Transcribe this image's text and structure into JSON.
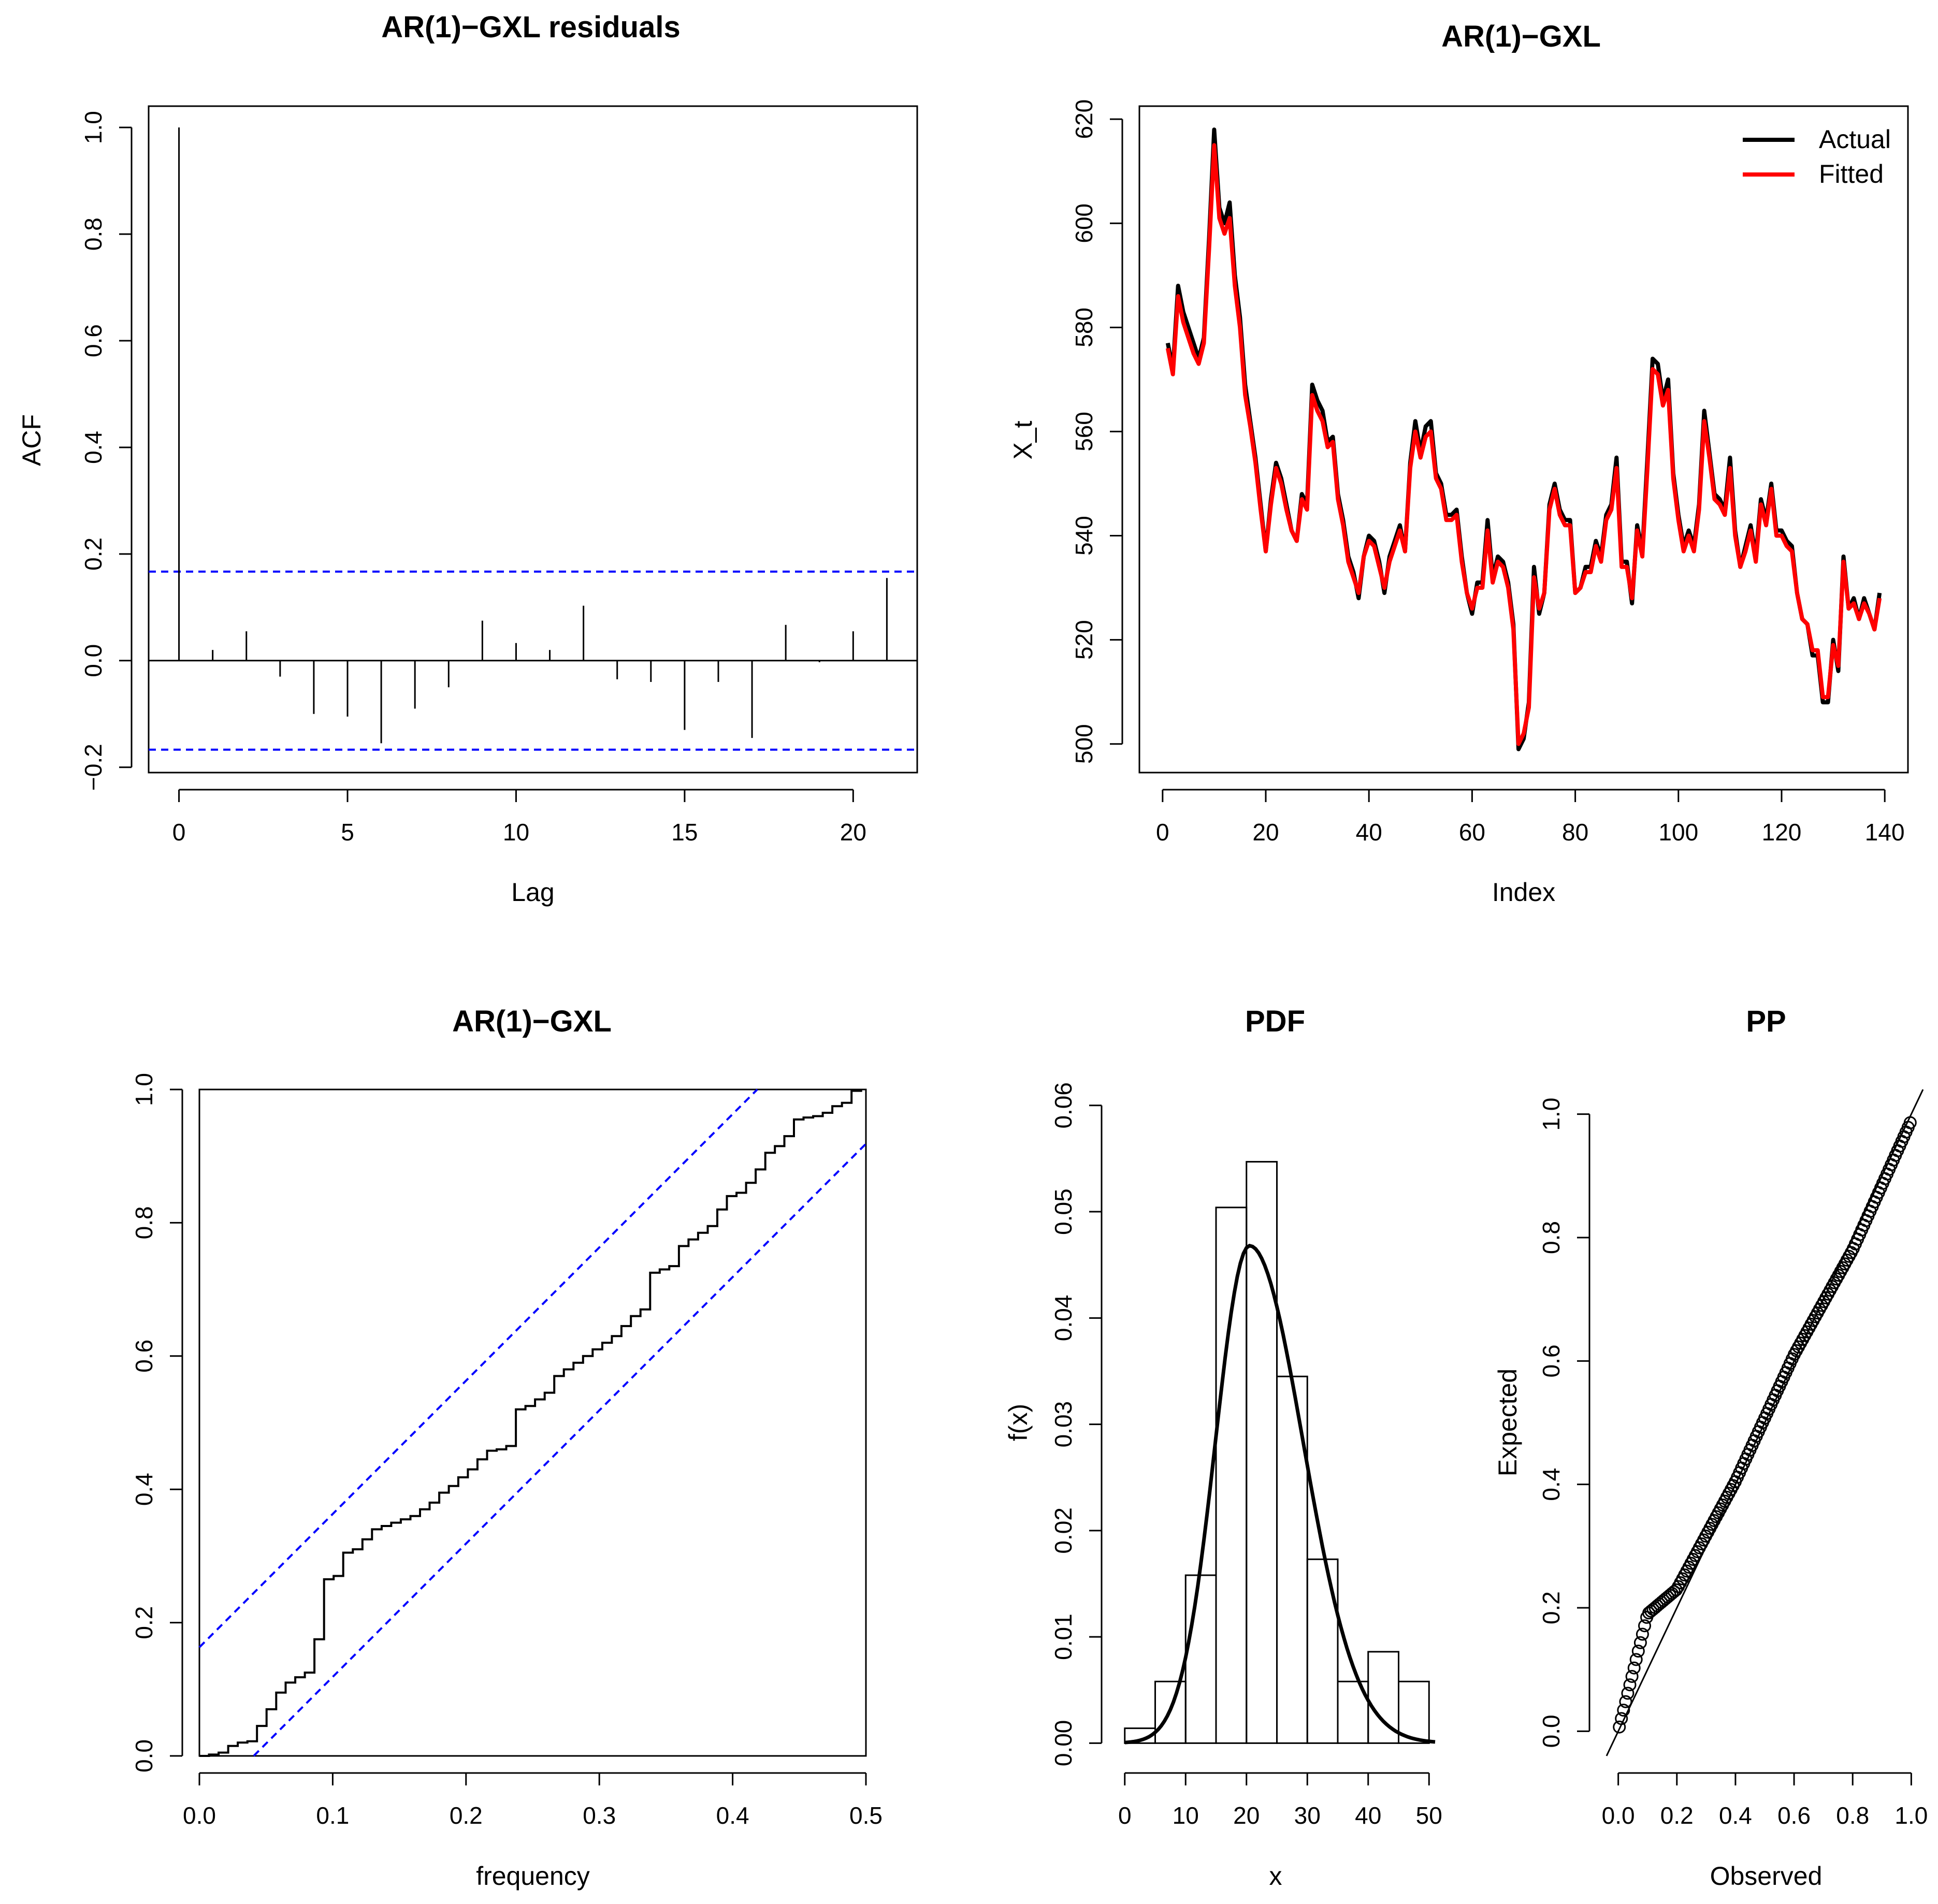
{
  "chart_data": [
    {
      "id": "acf",
      "type": "bar",
      "title": "AR(1)−GXL residuals",
      "xlabel": "Lag",
      "ylabel": "ACF",
      "xlim": [
        -0.9,
        21.9
      ],
      "ylim": [
        -0.21,
        1.04
      ],
      "xticks": [
        0,
        5,
        10,
        15,
        20
      ],
      "yticks": [
        -0.2,
        0.0,
        0.2,
        0.4,
        0.6,
        0.8,
        1.0
      ],
      "ytick_labels": [
        "−0.2",
        "0.0",
        "0.2",
        "0.4",
        "0.6",
        "0.8",
        "1.0"
      ],
      "lags": [
        0,
        1,
        2,
        3,
        4,
        5,
        6,
        7,
        8,
        9,
        10,
        11,
        12,
        13,
        14,
        15,
        16,
        17,
        18,
        19,
        20,
        21
      ],
      "values": [
        1.0,
        0.02,
        0.055,
        -0.03,
        -0.1,
        -0.105,
        -0.155,
        -0.09,
        -0.05,
        0.075,
        0.033,
        0.02,
        0.103,
        -0.035,
        -0.04,
        -0.13,
        -0.04,
        -0.145,
        0.067,
        -0.003,
        0.055,
        0.155
      ],
      "ci_bounds": [
        0.167,
        -0.167
      ],
      "ci_color": "#0000ff"
    },
    {
      "id": "series",
      "type": "line",
      "title": "AR(1)−GXL",
      "xlabel": "Index",
      "ylabel": "X_t",
      "xlim": [
        -4.5,
        144.5
      ],
      "ylim": [
        494.5,
        622.5
      ],
      "xticks": [
        0,
        20,
        40,
        60,
        80,
        100,
        120,
        140
      ],
      "yticks": [
        500,
        520,
        540,
        560,
        580,
        600,
        620
      ],
      "legend": {
        "position": "top-right",
        "entries": [
          "Actual",
          "Fitted"
        ]
      },
      "series": [
        {
          "name": "Actual",
          "color": "#000000",
          "x_start": 1,
          "values": [
            577,
            572,
            588,
            583,
            580,
            577,
            574,
            578,
            597,
            618,
            603,
            600,
            604,
            590,
            582,
            569,
            562,
            555,
            546,
            537,
            547,
            554,
            551,
            546,
            541,
            539,
            548,
            546,
            569,
            566,
            564,
            558,
            559,
            548,
            543,
            536,
            533,
            528,
            536,
            540,
            539,
            535,
            529,
            536,
            539,
            542,
            537,
            554,
            562,
            556,
            561,
            562,
            552,
            550,
            544,
            544,
            545,
            536,
            529,
            525,
            531,
            531,
            543,
            532,
            536,
            535,
            531,
            523,
            499,
            501,
            508,
            534,
            525,
            529,
            546,
            550,
            545,
            543,
            543,
            529,
            530,
            534,
            534,
            539,
            536,
            544,
            546,
            555,
            535,
            535,
            527,
            542,
            537,
            555,
            574,
            573,
            566,
            570,
            552,
            544,
            538,
            541,
            538,
            546,
            564,
            556,
            548,
            547,
            545,
            555,
            541,
            534,
            538,
            542,
            536,
            547,
            543,
            550,
            541,
            541,
            539,
            538,
            529,
            524,
            523,
            517,
            517,
            508,
            508,
            520,
            514,
            536,
            526,
            528,
            524,
            528,
            525,
            522,
            529
          ]
        },
        {
          "name": "Fitted",
          "color": "#ff0000",
          "x_start": 1,
          "values": [
            576,
            571,
            586,
            581,
            578,
            575,
            573,
            577,
            595,
            615,
            601,
            598,
            601,
            588,
            580,
            567,
            561,
            554,
            545,
            537,
            546,
            553,
            550,
            545,
            541,
            539,
            547,
            545,
            567,
            564,
            562,
            557,
            558,
            547,
            542,
            535,
            532,
            529,
            536,
            539,
            538,
            534,
            530,
            535,
            538,
            541,
            537,
            553,
            560,
            555,
            559,
            560,
            551,
            549,
            543,
            543,
            544,
            535,
            529,
            526,
            530,
            530,
            541,
            531,
            535,
            534,
            530,
            522,
            500,
            502,
            507,
            532,
            526,
            529,
            545,
            549,
            544,
            542,
            542,
            529,
            530,
            533,
            533,
            538,
            535,
            543,
            545,
            553,
            534,
            534,
            528,
            541,
            536,
            553,
            572,
            571,
            565,
            568,
            551,
            543,
            537,
            540,
            537,
            545,
            562,
            555,
            547,
            546,
            544,
            553,
            540,
            534,
            537,
            541,
            535,
            546,
            542,
            549,
            540,
            540,
            538,
            537,
            529,
            524,
            523,
            518,
            518,
            509,
            509,
            519,
            515,
            535,
            526,
            527,
            524,
            527,
            525,
            522,
            528
          ]
        }
      ]
    },
    {
      "id": "cpgram",
      "type": "line",
      "title": "AR(1)−GXL",
      "xlabel": "frequency",
      "ylabel": "",
      "xlim": [
        0,
        0.5
      ],
      "ylim": [
        0,
        1
      ],
      "xticks": [
        0.0,
        0.1,
        0.2,
        0.3,
        0.4,
        0.5
      ],
      "xtick_labels": [
        "0.0",
        "0.1",
        "0.2",
        "0.3",
        "0.4",
        "0.5"
      ],
      "yticks": [
        0.0,
        0.2,
        0.4,
        0.6,
        0.8,
        1.0
      ],
      "ytick_labels": [
        "0.0",
        "0.2",
        "0.4",
        "0.6",
        "0.8",
        "1.0"
      ],
      "n_steps": 69,
      "frequencies": [
        0.0072,
        0.0144,
        0.0216,
        0.0288,
        0.036,
        0.0432,
        0.0504,
        0.0576,
        0.0647,
        0.0719,
        0.0791,
        0.0863,
        0.0935,
        0.1007,
        0.1079,
        0.1151,
        0.1223,
        0.1295,
        0.1367,
        0.1439,
        0.1511,
        0.1583,
        0.1655,
        0.1727,
        0.1799,
        0.1871,
        0.1942,
        0.2014,
        0.2086,
        0.2158,
        0.223,
        0.2302,
        0.2374,
        0.2446,
        0.2518,
        0.259,
        0.2662,
        0.2734,
        0.2806,
        0.2878,
        0.295,
        0.3022,
        0.3094,
        0.3166,
        0.3237,
        0.3309,
        0.3381,
        0.3453,
        0.3525,
        0.3597,
        0.3669,
        0.3741,
        0.3813,
        0.3885,
        0.3957,
        0.4029,
        0.4101,
        0.4173,
        0.4245,
        0.4317,
        0.4388,
        0.446,
        0.4532,
        0.4604,
        0.4676,
        0.4748,
        0.482,
        0.4892,
        0.4964
      ],
      "values": [
        0.002,
        0.005,
        0.015,
        0.02,
        0.022,
        0.045,
        0.07,
        0.095,
        0.11,
        0.118,
        0.125,
        0.175,
        0.265,
        0.27,
        0.305,
        0.31,
        0.325,
        0.34,
        0.345,
        0.35,
        0.355,
        0.36,
        0.37,
        0.38,
        0.395,
        0.405,
        0.418,
        0.43,
        0.445,
        0.458,
        0.46,
        0.465,
        0.52,
        0.525,
        0.535,
        0.545,
        0.57,
        0.58,
        0.59,
        0.6,
        0.61,
        0.62,
        0.63,
        0.645,
        0.66,
        0.67,
        0.725,
        0.73,
        0.735,
        0.765,
        0.775,
        0.785,
        0.795,
        0.82,
        0.84,
        0.845,
        0.86,
        0.88,
        0.905,
        0.915,
        0.93,
        0.955,
        0.958,
        0.96,
        0.965,
        0.975,
        0.98,
        0.998,
        1.0
      ],
      "bounds": {
        "intercept": 0.163,
        "slope": 2.0,
        "color": "#0000ff"
      }
    },
    {
      "id": "pdf",
      "type": "bar",
      "title": "PDF",
      "xlabel": "x",
      "ylabel": "f(x)",
      "xlim": [
        -1,
        51
      ],
      "ylim": [
        -0.0012,
        0.0615
      ],
      "xticks": [
        0,
        10,
        20,
        30,
        40,
        50
      ],
      "yticks": [
        0.0,
        0.01,
        0.02,
        0.03,
        0.04,
        0.05,
        0.06
      ],
      "ytick_labels": [
        "0.00",
        "0.01",
        "0.02",
        "0.03",
        "0.04",
        "0.05",
        "0.06"
      ],
      "bin_edges": [
        0,
        5,
        10,
        15,
        20,
        25,
        30,
        35,
        40,
        45,
        50
      ],
      "densities": [
        0.0014,
        0.0058,
        0.0158,
        0.0504,
        0.0547,
        0.0345,
        0.0173,
        0.0058,
        0.0086,
        0.0058
      ],
      "curve": {
        "type": "density-curve",
        "mode_x": 20.5,
        "peak_density": 0.0468
      }
    },
    {
      "id": "pp",
      "type": "scatter",
      "title": "PP",
      "xlabel": "Observed",
      "ylabel": "Expected",
      "xlim": [
        -0.04,
        1.04
      ],
      "ylim": [
        -0.04,
        1.04
      ],
      "xticks": [
        0.0,
        0.2,
        0.4,
        0.6,
        0.8,
        1.0
      ],
      "yticks": [
        0.0,
        0.2,
        0.4,
        0.6,
        0.8,
        1.0
      ],
      "tick_labels": [
        "0.0",
        "0.2",
        "0.4",
        "0.6",
        "0.8",
        "1.0"
      ],
      "n_points": 139,
      "reference_line": "y = x",
      "curve_knots": {
        "observed": [
          0,
          0.1,
          0.2,
          0.4,
          0.6,
          0.8,
          1.0
        ],
        "expected": [
          0,
          0.19,
          0.23,
          0.405,
          0.61,
          0.78,
          0.99
        ]
      }
    }
  ]
}
